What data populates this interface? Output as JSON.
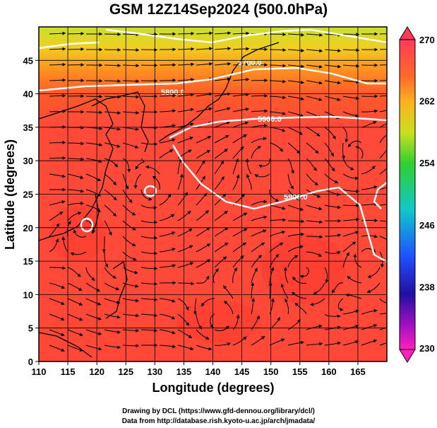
{
  "title": "GSM 12Z14Sep2024 (500.0hPa)",
  "map": {
    "lon_range": [
      110,
      170
    ],
    "lat_range": [
      0,
      50
    ],
    "x_ticks": [
      110,
      115,
      120,
      125,
      130,
      135,
      140,
      145,
      150,
      155,
      160,
      165
    ],
    "y_ticks": [
      0,
      5,
      10,
      15,
      20,
      25,
      30,
      35,
      40,
      45
    ],
    "xlabel": "Longitude (degrees)",
    "ylabel": "Latitude (degrees)",
    "grid": true,
    "shaded_field_range": [
      230,
      270
    ],
    "contour_labels": [
      "5700.0",
      "5800.0",
      "5900.0",
      "5900.0"
    ]
  },
  "colorbar": {
    "ticks": [
      "270",
      "262",
      "254",
      "246",
      "238",
      "230"
    ],
    "colors": [
      "#ff3a5a",
      "#ff6a2a",
      "#ffb020",
      "#c8e020",
      "#30d030",
      "#10c8c8",
      "#2050ff",
      "#2010a0",
      "#a010c0",
      "#ff20c0"
    ]
  },
  "credits": [
    "Drawing by DCL (https://www.gfd-dennou.org/library/dcl/)",
    "Data from http://database.rish.kyoto-u.ac.jp/arch/jmadata/"
  ]
}
